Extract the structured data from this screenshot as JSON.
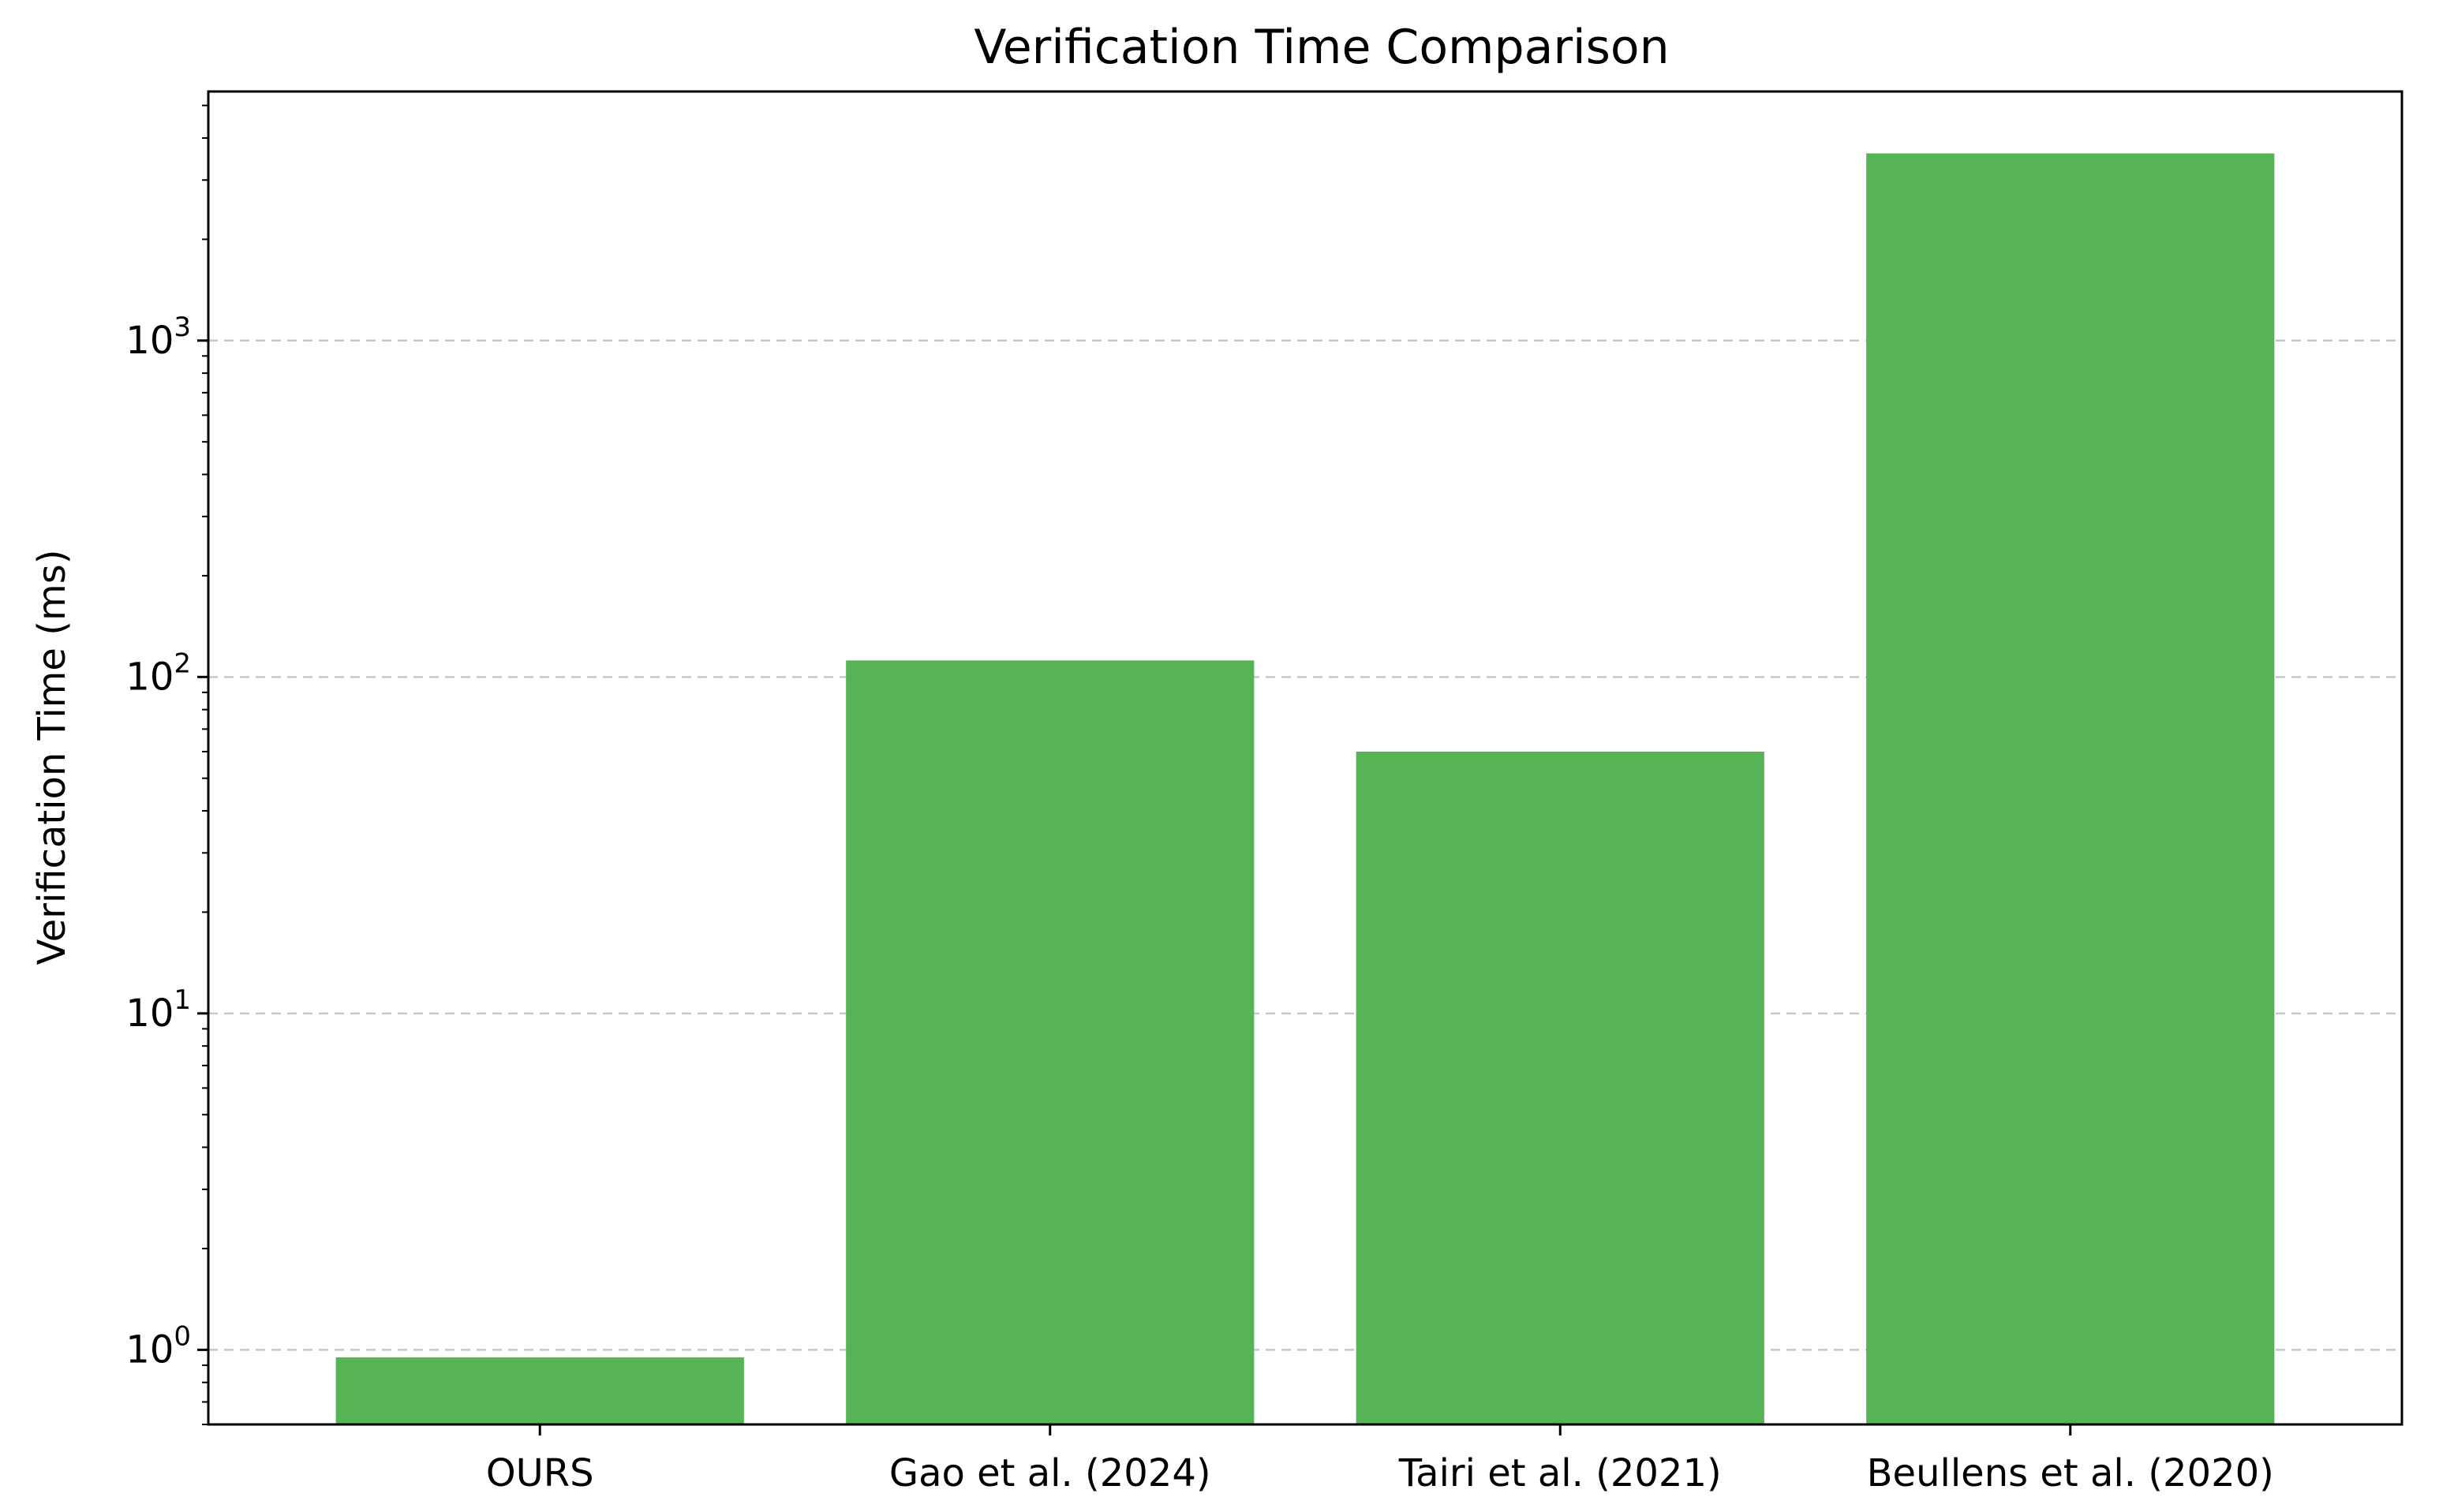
{
  "chart_data": {
    "type": "bar",
    "title": "Verification Time Comparison",
    "xlabel": "",
    "ylabel": "Verification Time (ms)",
    "yscale": "log",
    "ylim": [
      0.6,
      5500
    ],
    "y_ticks": [
      {
        "value": 1,
        "base": "10",
        "exp": "0"
      },
      {
        "value": 10,
        "base": "10",
        "exp": "1"
      },
      {
        "value": 100,
        "base": "10",
        "exp": "2"
      },
      {
        "value": 1000,
        "base": "10",
        "exp": "3"
      }
    ],
    "categories": [
      "OURS",
      "Gao et al. (2024)",
      "Tairi et al. (2021)",
      "Beullens et al. (2020)"
    ],
    "values": [
      0.95,
      112,
      60,
      3600
    ],
    "bar_color": "#56b356",
    "grid": "y-dashed",
    "legend": "none"
  }
}
